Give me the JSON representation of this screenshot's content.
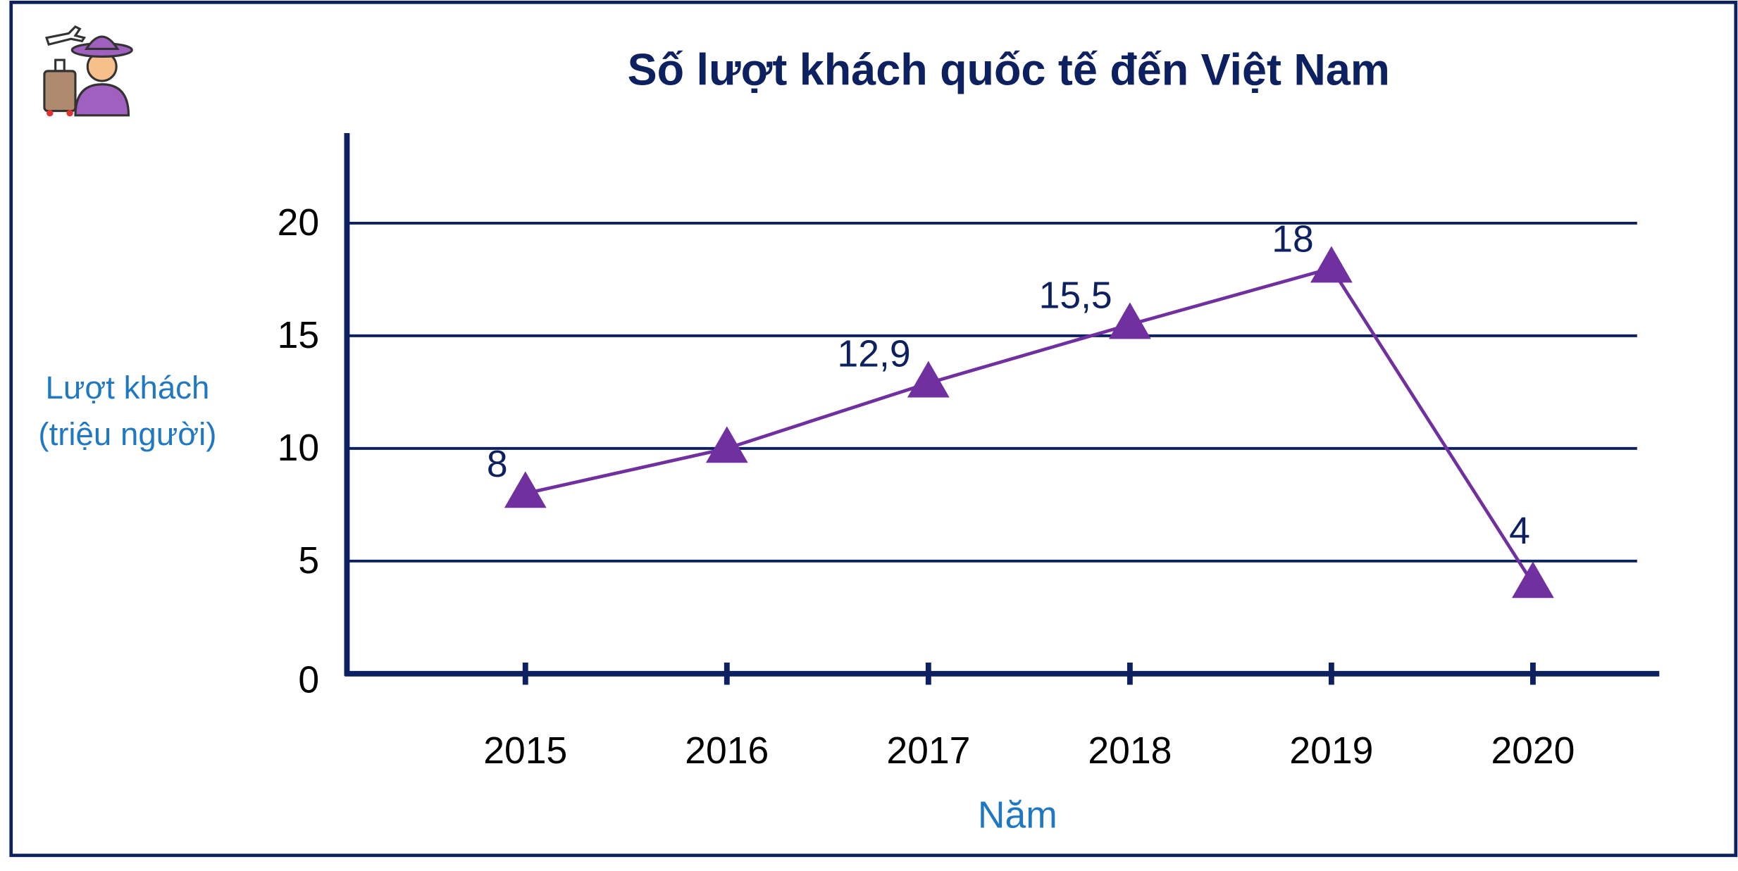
{
  "chart_data": {
    "type": "line",
    "title": "Số lượt khách quốc tế đến Việt Nam",
    "ylabel": [
      "Lượt khách",
      "(triệu người)"
    ],
    "xlabel": "Năm",
    "categories": [
      "2015",
      "2016",
      "2017",
      "2018",
      "2019",
      "2020"
    ],
    "series": [
      {
        "name": "Lượt khách",
        "color": "#7030a0",
        "values": [
          8,
          10,
          12.9,
          15.5,
          18,
          4
        ],
        "value_labels": [
          "8",
          null,
          "12,9",
          "15,5",
          "18",
          "4"
        ]
      }
    ],
    "ylim": [
      0,
      24
    ],
    "yticks": [
      0,
      5,
      10,
      15,
      20
    ],
    "grid": true
  }
}
